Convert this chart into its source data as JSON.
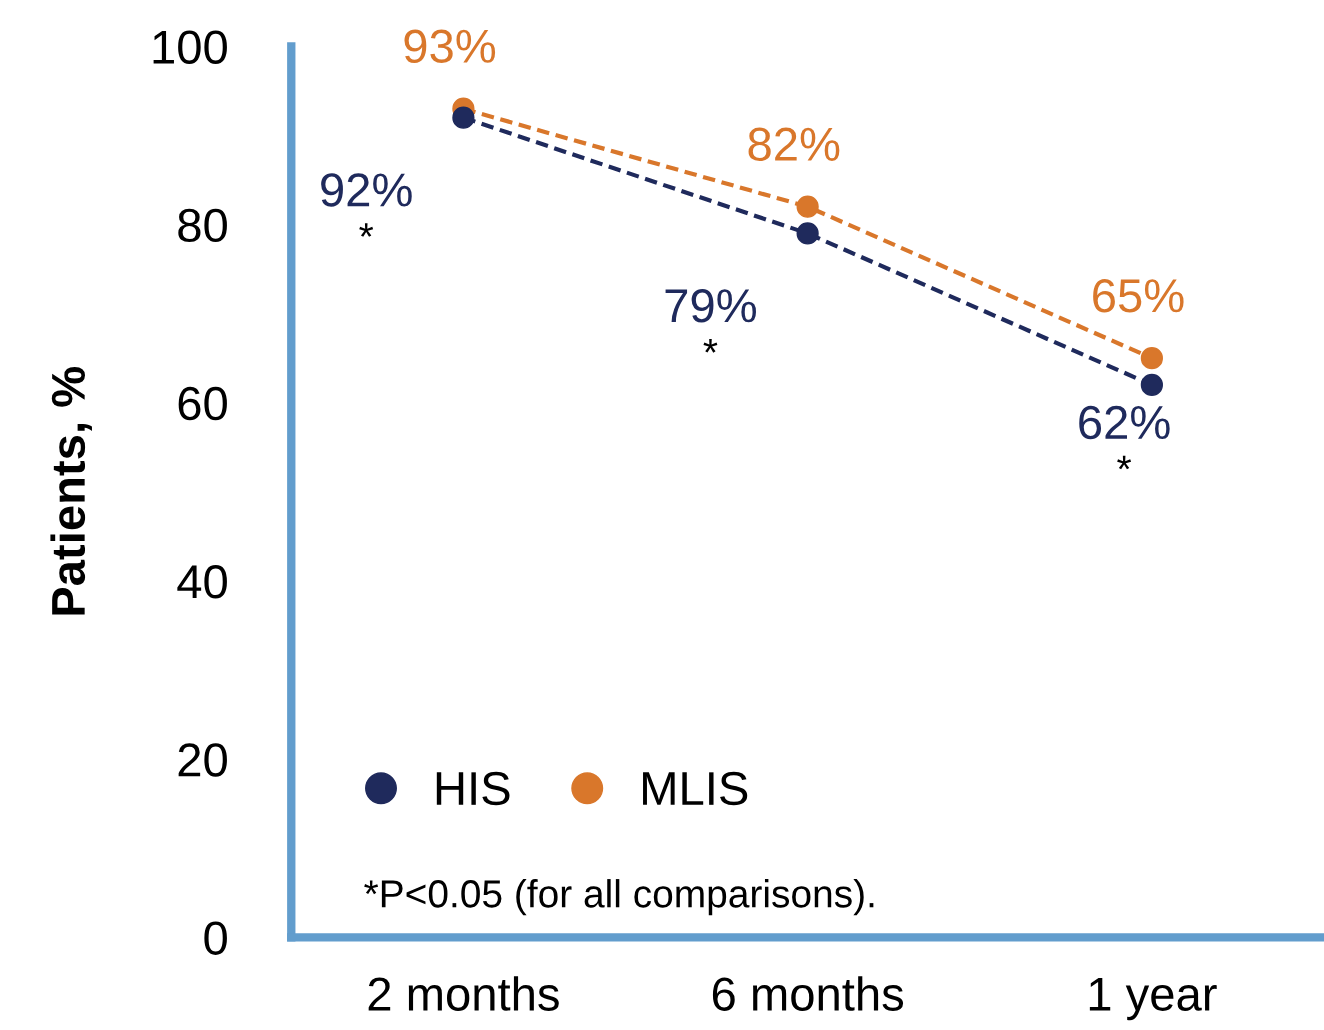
{
  "chart_data": {
    "type": "line",
    "ylabel": "Patients, %",
    "categories": [
      "2 months",
      "6 months",
      "1 year"
    ],
    "series": [
      {
        "name": "HIS",
        "color": "#1f2a5c",
        "values": [
          92,
          79,
          62
        ],
        "value_labels": [
          "92%",
          "79%",
          "62%"
        ]
      },
      {
        "name": "MLIS",
        "color": "#d9772b",
        "values": [
          93,
          82,
          65
        ],
        "value_labels": [
          "93%",
          "82%",
          "65%"
        ]
      }
    ],
    "ylim": [
      0,
      100
    ],
    "yticks": [
      0,
      20,
      40,
      60,
      80,
      100
    ],
    "marker": "circle",
    "line_style": "dashed",
    "grid": false,
    "legend": "bottom left",
    "annotations": [
      "*",
      "*",
      "*",
      "*P<0.05 (for all comparisons)."
    ]
  }
}
